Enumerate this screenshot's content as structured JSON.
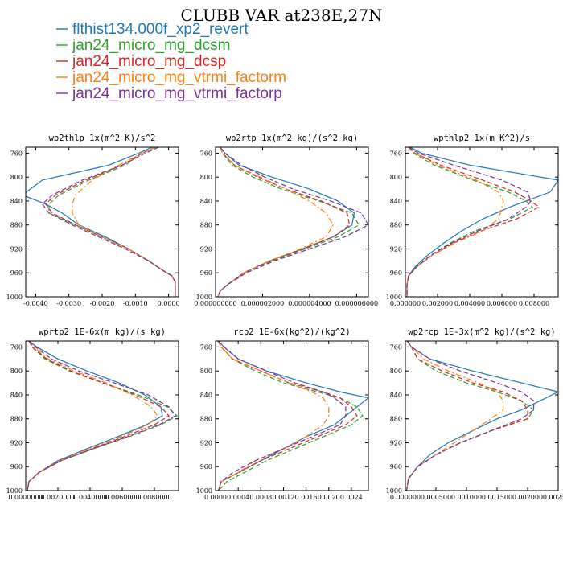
{
  "figure": {
    "title": "CLUBB VAR at238E,27N"
  },
  "legend": [
    {
      "label": "flthist134.000f_xp2_revert",
      "color": "#1f77b4",
      "dash": "solid"
    },
    {
      "label": "jan24_micro_mg_dcsm",
      "color": "#2ca02c",
      "dash": "dash"
    },
    {
      "label": "jan24_micro_mg_dcsp",
      "color": "#d62728",
      "dash": "dash"
    },
    {
      "label": "jan24_micro_mg_vtrmi_factorm",
      "color": "#ff7f0e",
      "dash": "dashdot"
    },
    {
      "label": "jan24_micro_mg_vtrmi_factorp",
      "color": "#7b3294",
      "dash": "dash"
    }
  ],
  "chart_data": [
    {
      "type": "line",
      "title": "wp2thlp  1x(m^2 K)/s^2",
      "xlim": [
        -0.0043,
        0.0003
      ],
      "ylim": [
        1000,
        750
      ],
      "xticks": [
        -0.004,
        -0.003,
        -0.002,
        -0.001,
        0.0
      ],
      "xtick_labels": [
        "-0.0040",
        "-0.0030",
        "-0.0020",
        "-0.0010",
        "0.0000"
      ],
      "yticks": [
        760,
        800,
        840,
        880,
        920,
        960,
        1000
      ],
      "y": [
        750,
        760,
        780,
        805,
        830,
        845,
        860,
        880,
        900,
        920,
        940,
        955,
        965,
        975,
        985,
        1000
      ],
      "series": [
        {
          "values": [
            -0.0005,
            -0.0009,
            -0.0018,
            -0.0038,
            -0.0044,
            -0.0037,
            -0.0032,
            -0.0027,
            -0.0019,
            -0.0012,
            -0.0006,
            -0.0002,
            0.0001,
            0.0002,
            0.0002,
            0.0002
          ]
        },
        {
          "values": [
            -0.0004,
            -0.0008,
            -0.0013,
            -0.0024,
            -0.0033,
            -0.0036,
            -0.0036,
            -0.0028,
            -0.002,
            -0.0012,
            -0.0006,
            -0.0002,
            0.0001,
            0.0002,
            0.0002,
            0.0002
          ]
        },
        {
          "values": [
            -0.0004,
            -0.0008,
            -0.0014,
            -0.0025,
            -0.0034,
            -0.0037,
            -0.0035,
            -0.0028,
            -0.002,
            -0.0012,
            -0.0006,
            -0.0002,
            0.0001,
            0.0002,
            0.0002,
            0.0002
          ]
        },
        {
          "values": [
            -0.0004,
            -0.0008,
            -0.0015,
            -0.0023,
            -0.0028,
            -0.0029,
            -0.0029,
            -0.0027,
            -0.002,
            -0.0012,
            -0.0006,
            -0.0002,
            0.0001,
            0.0002,
            0.0002,
            0.0002
          ]
        },
        {
          "values": [
            -0.0003,
            -0.0007,
            -0.0014,
            -0.0026,
            -0.0035,
            -0.0038,
            -0.0036,
            -0.0029,
            -0.0021,
            -0.0013,
            -0.0006,
            -0.0002,
            0.0001,
            0.0002,
            0.0002,
            0.0002
          ]
        }
      ]
    },
    {
      "type": "line",
      "title": "wp2rtp  1x(m^2 kg)/(s^2 kg)",
      "xlim": [
        0.0,
        6.5e-06
      ],
      "ylim": [
        1000,
        750
      ],
      "xticks": [
        0.0,
        2e-06,
        4e-06,
        6e-06
      ],
      "xtick_labels": [
        "0.000000000",
        "0.000002000",
        "0.000004000",
        "0.000006000"
      ],
      "yticks": [
        760,
        800,
        840,
        880,
        920,
        960,
        1000
      ],
      "y": [
        750,
        760,
        780,
        800,
        820,
        840,
        860,
        880,
        900,
        920,
        940,
        960,
        980,
        990,
        1000
      ],
      "series": [
        {
          "values": [
            2e-07,
            4e-07,
            1e-06,
            2.4e-06,
            4e-06,
            5.2e-06,
            5.9e-06,
            5.8e-06,
            5e-06,
            3.7e-06,
            2.3e-06,
            1.2e-06,
            5e-07,
            2e-07,
            1e-07
          ]
        },
        {
          "values": [
            2e-07,
            3e-07,
            7e-07,
            1.6e-06,
            2.8e-06,
            4.4e-06,
            5.8e-06,
            6.1e-06,
            5.2e-06,
            3.8e-06,
            2.4e-06,
            1.2e-06,
            5e-07,
            2e-07,
            1e-07
          ]
        },
        {
          "values": [
            2e-07,
            3e-07,
            8e-07,
            1.8e-06,
            3e-06,
            4.5e-06,
            5.6e-06,
            5.7e-06,
            5e-06,
            3.7e-06,
            2.3e-06,
            1.2e-06,
            5e-07,
            2e-07,
            1e-07
          ]
        },
        {
          "values": [
            2e-07,
            3e-07,
            8e-07,
            1.9e-06,
            3e-06,
            4e-06,
            4.7e-06,
            5e-06,
            4.7e-06,
            3.6e-06,
            2.3e-06,
            1.2e-06,
            5e-07,
            2e-07,
            1e-07
          ]
        },
        {
          "values": [
            2e-07,
            4e-07,
            1.1e-06,
            2.1e-06,
            3.3e-06,
            4.9e-06,
            6.2e-06,
            6.5e-06,
            5.5e-06,
            4e-06,
            2.5e-06,
            1.3e-06,
            5e-07,
            2e-07,
            1e-07
          ]
        }
      ]
    },
    {
      "type": "line",
      "title": "wpthlp2  1x(m K^2)/s",
      "xlim": [
        0.0,
        0.0095
      ],
      "ylim": [
        1000,
        750
      ],
      "xticks": [
        0.0,
        0.002,
        0.004,
        0.006,
        0.008
      ],
      "xtick_labels": [
        "0.000000",
        "0.002000",
        "0.004000",
        "0.006000",
        "0.008000"
      ],
      "yticks": [
        760,
        800,
        840,
        880,
        920,
        960,
        1000
      ],
      "y": [
        750,
        760,
        780,
        805,
        825,
        840,
        850,
        870,
        890,
        910,
        930,
        950,
        965,
        980,
        1000
      ],
      "series": [
        {
          "values": [
            0.0003,
            0.001,
            0.004,
            0.0095,
            0.009,
            0.0075,
            0.0065,
            0.0048,
            0.0035,
            0.0024,
            0.0014,
            0.0006,
            0.0002,
            0.0001,
            0.0001
          ]
        },
        {
          "values": [
            0.0002,
            0.0005,
            0.0018,
            0.0042,
            0.0064,
            0.0075,
            0.0079,
            0.0065,
            0.0043,
            0.0028,
            0.0016,
            0.0007,
            0.0002,
            0.0001,
            0.0001
          ]
        },
        {
          "values": [
            0.0002,
            0.0006,
            0.0022,
            0.0048,
            0.0068,
            0.0078,
            0.0083,
            0.0069,
            0.0047,
            0.003,
            0.0017,
            0.0007,
            0.0002,
            0.0001,
            0.0001
          ]
        },
        {
          "values": [
            0.0002,
            0.0006,
            0.002,
            0.0044,
            0.0058,
            0.0061,
            0.006,
            0.0058,
            0.0048,
            0.0031,
            0.0017,
            0.0007,
            0.0002,
            0.0001,
            0.0001
          ]
        },
        {
          "values": [
            0.0002,
            0.0008,
            0.003,
            0.006,
            0.0076,
            0.0078,
            0.0075,
            0.0064,
            0.0045,
            0.0029,
            0.0016,
            0.0007,
            0.0002,
            0.0001,
            0.0001
          ]
        }
      ]
    },
    {
      "type": "line",
      "title": "wprtp2  1E-6x(m kg)/(s kg)",
      "xlim": [
        0.0,
        0.0095
      ],
      "ylim": [
        1000,
        750
      ],
      "xticks": [
        0.0,
        0.002,
        0.004,
        0.006,
        0.008
      ],
      "xtick_labels": [
        "0.0000000",
        "0.0020000",
        "0.0040000",
        "0.0060000",
        "0.0080000"
      ],
      "yticks": [
        760,
        800,
        840,
        880,
        920,
        960,
        1000
      ],
      "y": [
        750,
        760,
        780,
        800,
        820,
        840,
        860,
        875,
        890,
        910,
        930,
        950,
        970,
        985,
        1000
      ],
      "series": [
        {
          "values": [
            0.0002,
            0.0007,
            0.002,
            0.0038,
            0.0058,
            0.0074,
            0.0084,
            0.0085,
            0.0075,
            0.0057,
            0.0038,
            0.002,
            0.0008,
            0.0002,
            0.0001
          ]
        },
        {
          "values": [
            0.0002,
            0.0004,
            0.0012,
            0.0027,
            0.0048,
            0.007,
            0.0088,
            0.0094,
            0.0084,
            0.0064,
            0.0042,
            0.0022,
            0.0008,
            0.0002,
            0.0001
          ]
        },
        {
          "values": [
            0.0002,
            0.0004,
            0.0013,
            0.0028,
            0.0048,
            0.0068,
            0.0084,
            0.0089,
            0.008,
            0.0061,
            0.0041,
            0.0021,
            0.0008,
            0.0002,
            0.0001
          ]
        },
        {
          "values": [
            0.0002,
            0.0005,
            0.0014,
            0.003,
            0.005,
            0.0066,
            0.0078,
            0.0082,
            0.0076,
            0.0059,
            0.004,
            0.0021,
            0.0008,
            0.0002,
            0.0001
          ]
        },
        {
          "values": [
            0.0002,
            0.0006,
            0.0016,
            0.0033,
            0.0055,
            0.0076,
            0.0089,
            0.0093,
            0.0083,
            0.0063,
            0.0042,
            0.0022,
            0.0008,
            0.0002,
            0.0001
          ]
        }
      ]
    },
    {
      "type": "line",
      "title": "rcp2  1E-6x(kg^2)/(kg^2)",
      "xlim": [
        0.0,
        0.0027
      ],
      "ylim": [
        1000,
        750
      ],
      "xticks": [
        0.0,
        0.0004,
        0.0008,
        0.0012,
        0.0016,
        0.002,
        0.0024
      ],
      "xtick_labels": [
        "0.0000",
        "0.0004",
        "0.0008",
        "0.0012",
        "0.0016",
        "0.0020",
        "0.0024"
      ],
      "yticks": [
        760,
        800,
        840,
        880,
        920,
        960,
        1000
      ],
      "y": [
        750,
        760,
        780,
        800,
        820,
        835,
        845,
        860,
        875,
        890,
        910,
        930,
        950,
        970,
        985,
        1000
      ],
      "series": [
        {
          "values": [
            5e-05,
            0.00015,
            0.0004,
            0.0009,
            0.0016,
            0.0022,
            0.0027,
            0.0025,
            0.0023,
            0.0021,
            0.0016,
            0.0012,
            0.0008,
            0.0004,
            0.0001,
            5e-05
          ]
        },
        {
          "values": [
            4e-05,
            0.0001,
            0.0003,
            0.0007,
            0.0012,
            0.0018,
            0.0022,
            0.0025,
            0.0026,
            0.0024,
            0.0019,
            0.0014,
            0.0009,
            0.0005,
            0.0002,
            5e-05
          ]
        },
        {
          "values": [
            4e-05,
            0.0001,
            0.0003,
            0.0008,
            0.0013,
            0.0019,
            0.0022,
            0.0024,
            0.0025,
            0.0023,
            0.0018,
            0.0013,
            0.0008,
            0.0004,
            0.0001,
            5e-05
          ]
        },
        {
          "values": [
            4e-05,
            0.0001,
            0.0003,
            0.0008,
            0.0013,
            0.0017,
            0.0019,
            0.002,
            0.002,
            0.0019,
            0.0016,
            0.0012,
            0.0007,
            0.0004,
            0.0001,
            5e-05
          ]
        },
        {
          "values": [
            5e-05,
            0.00015,
            0.0004,
            0.0009,
            0.0014,
            0.0019,
            0.0021,
            0.0023,
            0.0023,
            0.0022,
            0.0017,
            0.0012,
            0.0007,
            0.0003,
            0.0001,
            5e-05
          ]
        }
      ]
    },
    {
      "type": "line",
      "title": "wp2rcp  1E-3x(m^2 kg)/(s^2 kg)",
      "xlim": [
        0.0,
        0.0025
      ],
      "ylim": [
        1000,
        750
      ],
      "xticks": [
        0.0,
        0.0005,
        0.001,
        0.0015,
        0.002,
        0.0025
      ],
      "xtick_labels": [
        "0.000000",
        "0.000500",
        "0.001000",
        "0.001500",
        "0.002000",
        "0.002500"
      ],
      "yticks": [
        760,
        800,
        840,
        880,
        920,
        960,
        1000
      ],
      "y": [
        750,
        760,
        780,
        800,
        820,
        835,
        850,
        865,
        880,
        900,
        920,
        940,
        960,
        980,
        1000
      ],
      "series": [
        {
          "values": [
            3e-05,
            0.0001,
            0.0004,
            0.0011,
            0.0019,
            0.0025,
            0.0022,
            0.0019,
            0.0015,
            0.0011,
            0.0007,
            0.0004,
            0.0002,
            5e-05,
            2e-05
          ]
        },
        {
          "values": [
            3e-05,
            0.0001,
            0.0002,
            0.0005,
            0.001,
            0.0015,
            0.0019,
            0.0021,
            0.002,
            0.0014,
            0.0009,
            0.0005,
            0.0002,
            5e-05,
            2e-05
          ]
        },
        {
          "values": [
            3e-05,
            0.0001,
            0.0002,
            0.0006,
            0.0011,
            0.0016,
            0.0019,
            0.002,
            0.002,
            0.0014,
            0.0009,
            0.0005,
            0.0002,
            5e-05,
            2e-05
          ]
        },
        {
          "values": [
            3e-05,
            0.0001,
            0.0003,
            0.0007,
            0.0012,
            0.0015,
            0.0016,
            0.0016,
            0.0014,
            0.0011,
            0.0008,
            0.0005,
            0.0002,
            5e-05,
            2e-05
          ]
        },
        {
          "values": [
            3e-05,
            0.0001,
            0.0004,
            0.0009,
            0.0015,
            0.0019,
            0.0021,
            0.0021,
            0.0019,
            0.0014,
            0.0009,
            0.0005,
            0.0002,
            5e-05,
            2e-05
          ]
        }
      ]
    }
  ]
}
